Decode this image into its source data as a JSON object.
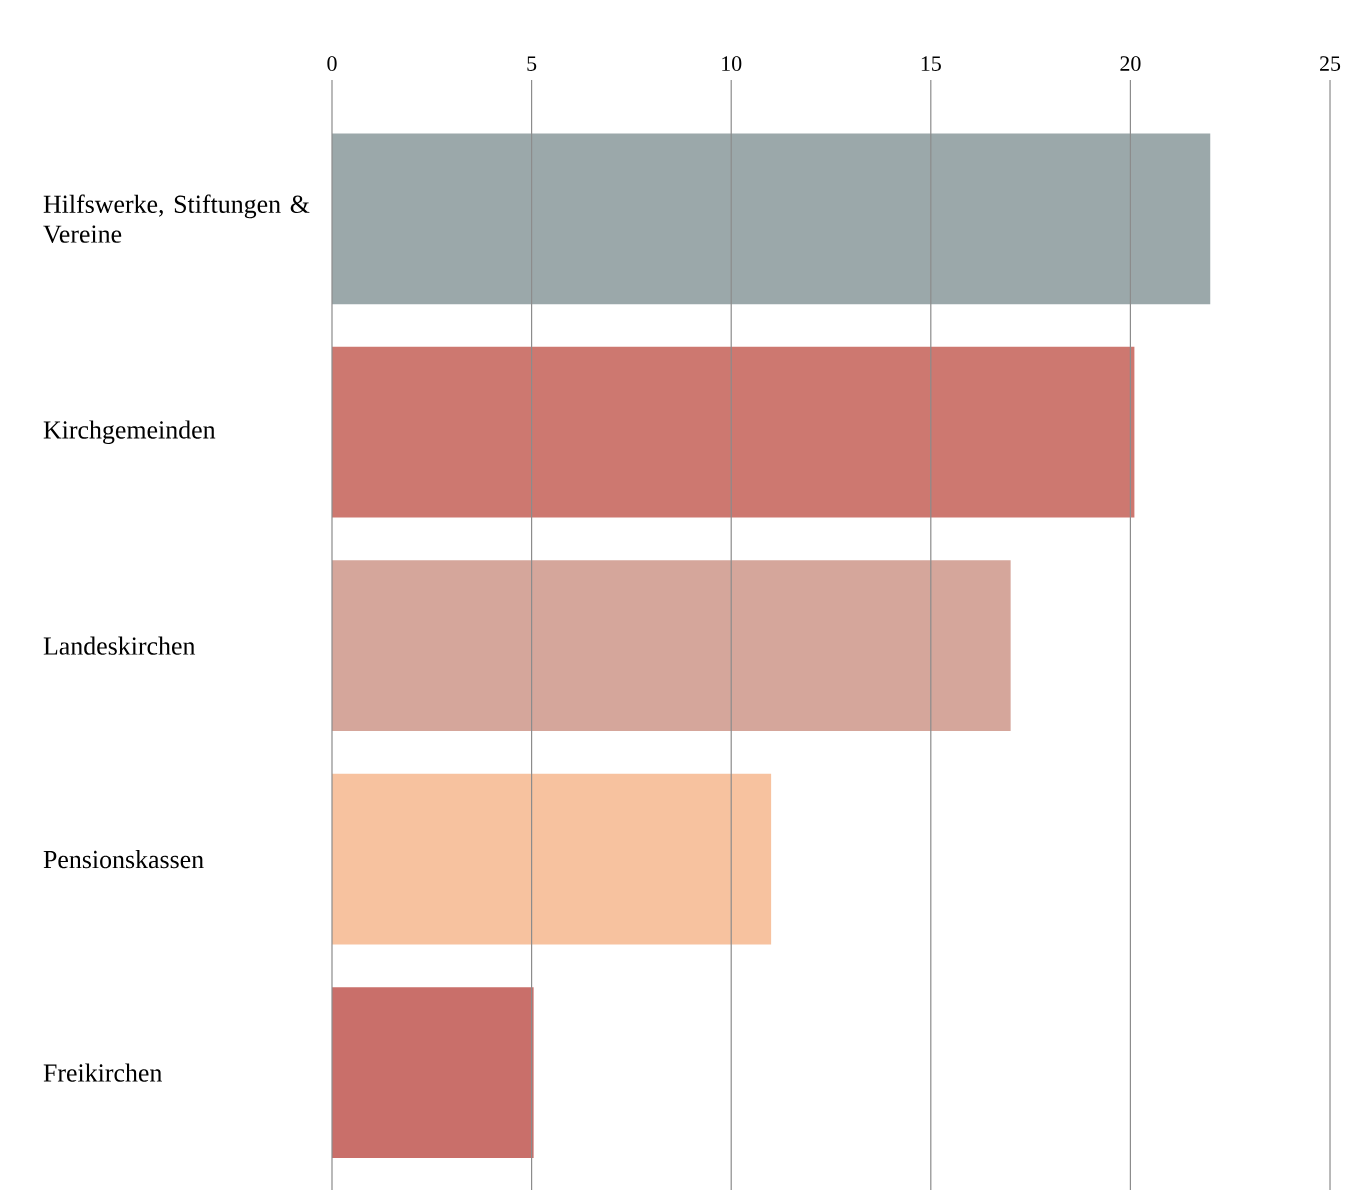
{
  "chart_data": {
    "type": "bar",
    "orientation": "horizontal",
    "categories": [
      "Hilfswerke, Stiftungen & Vereine",
      "Kirchgemeinden",
      "Landeskirchen",
      "Pensionskassen",
      "Freikirchen"
    ],
    "values": [
      22,
      20.1,
      17,
      11,
      5.05
    ],
    "colors": [
      "#9ba8aa",
      "#cd7870",
      "#d5a69b",
      "#f7c29f",
      "#c96f6a"
    ],
    "xlim": [
      0,
      25
    ],
    "xticks": [
      0,
      5,
      10,
      15,
      20,
      25
    ],
    "grid": "x"
  }
}
